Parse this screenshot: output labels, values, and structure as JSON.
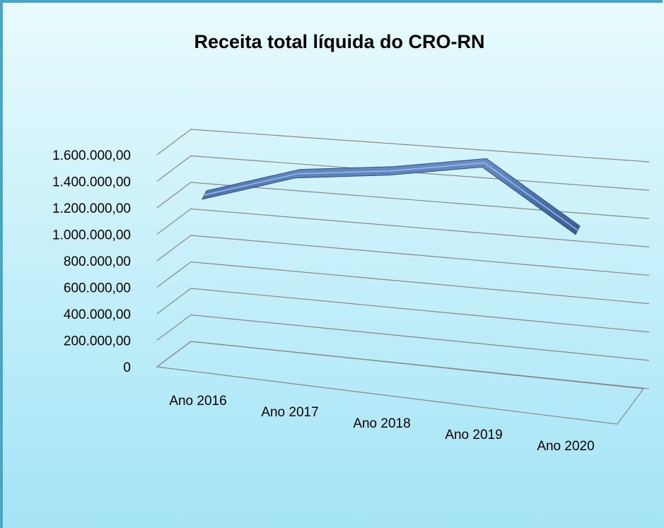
{
  "chart_data": {
    "type": "line3d",
    "title": "Receita total líquida do CRO-RN",
    "categories": [
      "Ano 2016",
      "Ano 2017",
      "Ano 2018",
      "Ano 2019",
      "Ano 2020"
    ],
    "values": [
      1110000,
      1320000,
      1390000,
      1500000,
      1040000
    ],
    "color": "#4a72b0",
    "ylim": [
      0,
      1600000
    ],
    "yticks": [
      0,
      {
        "value": 200000,
        "label": "200.000,00"
      },
      {
        "value": 400000,
        "label": "400.000,00"
      },
      {
        "value": 600000,
        "label": "600.000,00"
      },
      {
        "value": 800000,
        "label": "800.000,00"
      },
      {
        "value": 1000000,
        "label": "1.000.000,00"
      },
      {
        "value": 1200000,
        "label": "1.200.000,00"
      },
      {
        "value": 1400000,
        "label": "1.400.000,00"
      },
      {
        "value": 1600000,
        "label": "1.600.000,00"
      }
    ],
    "grid": true
  }
}
